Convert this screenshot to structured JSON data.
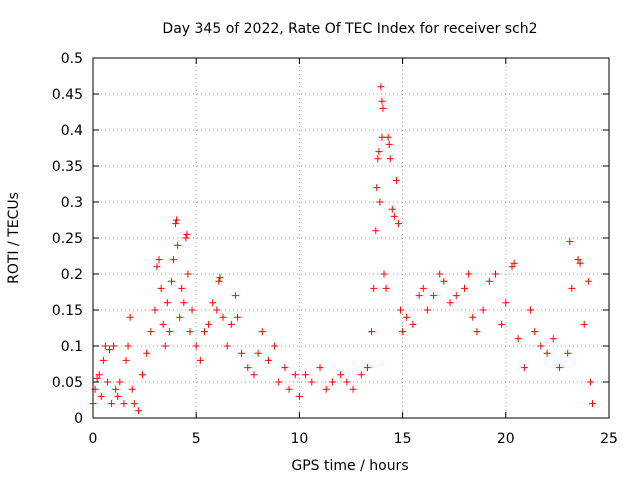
{
  "chart_data": {
    "type": "scatter",
    "title": "Day 345 of 2022, Rate Of TEC Index for receiver sch2",
    "xlabel": "GPS time / hours",
    "ylabel": "ROTI / TECUs",
    "xlim": [
      0,
      25
    ],
    "ylim": [
      0,
      0.5
    ],
    "xticks": [
      0,
      5,
      10,
      15,
      20,
      25
    ],
    "xtick_labels": [
      "0",
      "5",
      "10",
      "15",
      "20",
      "25"
    ],
    "yticks": [
      0,
      0.05,
      0.1,
      0.15,
      0.2,
      0.25,
      0.3,
      0.35,
      0.4,
      0.45,
      0.5
    ],
    "ytick_labels": [
      "0",
      "0.05",
      "0.1",
      "0.15",
      "0.2",
      "0.25",
      "0.3",
      "0.35",
      "0.4",
      "0.45",
      "0.5"
    ],
    "grid": true,
    "marker": "+",
    "color": "#ff0000",
    "series": [
      {
        "points": [
          [
            0.0,
            0.02
          ],
          [
            0.1,
            0.04
          ],
          [
            0.2,
            0.055
          ],
          [
            0.3,
            0.06
          ],
          [
            0.4,
            0.03
          ],
          [
            0.5,
            0.08
          ],
          [
            0.6,
            0.1
          ],
          [
            0.7,
            0.05
          ],
          [
            0.8,
            0.095
          ],
          [
            0.9,
            0.02
          ],
          [
            1.0,
            0.1
          ],
          [
            1.1,
            0.04
          ],
          [
            1.2,
            0.03
          ],
          [
            1.3,
            0.05
          ],
          [
            1.5,
            0.02
          ],
          [
            1.6,
            0.08
          ],
          [
            1.7,
            0.1
          ],
          [
            1.8,
            0.14
          ],
          [
            1.9,
            0.04
          ],
          [
            2.0,
            0.02
          ],
          [
            2.2,
            0.01
          ],
          [
            2.4,
            0.06
          ],
          [
            2.6,
            0.09
          ],
          [
            2.8,
            0.12
          ],
          [
            3.0,
            0.15
          ],
          [
            3.1,
            0.21
          ],
          [
            3.2,
            0.22
          ],
          [
            3.3,
            0.18
          ],
          [
            3.4,
            0.13
          ],
          [
            3.5,
            0.1
          ],
          [
            3.6,
            0.16
          ],
          [
            3.7,
            0.12
          ],
          [
            3.8,
            0.19
          ],
          [
            3.9,
            0.22
          ],
          [
            4.0,
            0.27
          ],
          [
            4.05,
            0.275
          ],
          [
            4.1,
            0.24
          ],
          [
            4.2,
            0.14
          ],
          [
            4.3,
            0.18
          ],
          [
            4.4,
            0.16
          ],
          [
            4.5,
            0.25
          ],
          [
            4.55,
            0.255
          ],
          [
            4.6,
            0.2
          ],
          [
            4.7,
            0.12
          ],
          [
            4.8,
            0.15
          ],
          [
            5.0,
            0.1
          ],
          [
            5.2,
            0.08
          ],
          [
            5.4,
            0.12
          ],
          [
            5.6,
            0.13
          ],
          [
            5.8,
            0.16
          ],
          [
            6.0,
            0.15
          ],
          [
            6.1,
            0.19
          ],
          [
            6.15,
            0.195
          ],
          [
            6.3,
            0.14
          ],
          [
            6.5,
            0.1
          ],
          [
            6.7,
            0.13
          ],
          [
            6.9,
            0.17
          ],
          [
            7.0,
            0.14
          ],
          [
            7.2,
            0.09
          ],
          [
            7.5,
            0.07
          ],
          [
            7.8,
            0.06
          ],
          [
            8.0,
            0.09
          ],
          [
            8.2,
            0.12
          ],
          [
            8.5,
            0.08
          ],
          [
            8.8,
            0.1
          ],
          [
            9.0,
            0.05
          ],
          [
            9.3,
            0.07
          ],
          [
            9.5,
            0.04
          ],
          [
            9.8,
            0.06
          ],
          [
            10.0,
            0.03
          ],
          [
            10.3,
            0.06
          ],
          [
            10.6,
            0.05
          ],
          [
            11.0,
            0.07
          ],
          [
            11.3,
            0.04
          ],
          [
            11.6,
            0.05
          ],
          [
            12.0,
            0.06
          ],
          [
            12.3,
            0.05
          ],
          [
            12.6,
            0.04
          ],
          [
            13.0,
            0.06
          ],
          [
            13.3,
            0.07
          ],
          [
            13.5,
            0.12
          ],
          [
            13.6,
            0.18
          ],
          [
            13.7,
            0.26
          ],
          [
            13.75,
            0.32
          ],
          [
            13.8,
            0.36
          ],
          [
            13.85,
            0.37
          ],
          [
            13.9,
            0.3
          ],
          [
            13.95,
            0.46
          ],
          [
            14.0,
            0.44
          ],
          [
            14.05,
            0.43
          ],
          [
            14.0,
            0.39
          ],
          [
            14.1,
            0.2
          ],
          [
            14.2,
            0.18
          ],
          [
            14.3,
            0.39
          ],
          [
            14.35,
            0.38
          ],
          [
            14.4,
            0.36
          ],
          [
            14.5,
            0.29
          ],
          [
            14.6,
            0.28
          ],
          [
            14.7,
            0.33
          ],
          [
            14.8,
            0.27
          ],
          [
            14.9,
            0.15
          ],
          [
            15.0,
            0.12
          ],
          [
            15.2,
            0.14
          ],
          [
            15.5,
            0.13
          ],
          [
            15.8,
            0.17
          ],
          [
            16.0,
            0.18
          ],
          [
            16.2,
            0.15
          ],
          [
            16.5,
            0.17
          ],
          [
            16.8,
            0.2
          ],
          [
            17.0,
            0.19
          ],
          [
            17.3,
            0.16
          ],
          [
            17.6,
            0.17
          ],
          [
            18.0,
            0.18
          ],
          [
            18.2,
            0.2
          ],
          [
            18.4,
            0.14
          ],
          [
            18.6,
            0.12
          ],
          [
            18.9,
            0.15
          ],
          [
            19.2,
            0.19
          ],
          [
            19.5,
            0.2
          ],
          [
            19.8,
            0.13
          ],
          [
            20.0,
            0.16
          ],
          [
            20.3,
            0.21
          ],
          [
            20.4,
            0.215
          ],
          [
            20.6,
            0.11
          ],
          [
            20.9,
            0.07
          ],
          [
            21.2,
            0.15
          ],
          [
            21.4,
            0.12
          ],
          [
            21.7,
            0.1
          ],
          [
            22.0,
            0.09
          ],
          [
            22.3,
            0.11
          ],
          [
            22.6,
            0.07
          ],
          [
            23.0,
            0.09
          ],
          [
            23.1,
            0.245
          ],
          [
            23.2,
            0.18
          ],
          [
            23.5,
            0.22
          ],
          [
            23.6,
            0.215
          ],
          [
            23.8,
            0.13
          ],
          [
            24.0,
            0.19
          ],
          [
            24.1,
            0.05
          ],
          [
            24.2,
            0.02
          ]
        ]
      }
    ]
  }
}
